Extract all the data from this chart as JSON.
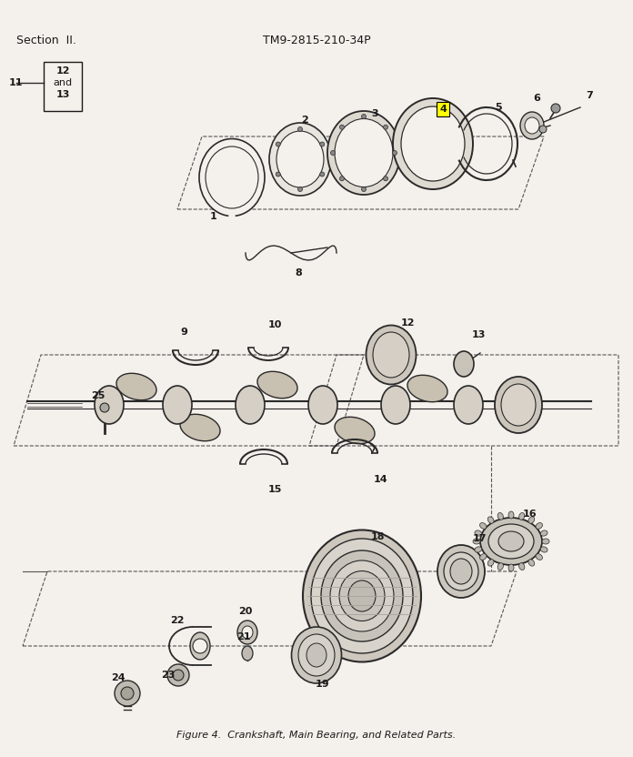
{
  "header_left": "Section  II.",
  "header_center": "TM9-2815-210-34P",
  "caption": "Figure 4.  Crankshaft, Main Bearing, and Related Parts.",
  "bg_color": "#f4f0eb",
  "text_color": "#1a1a1a",
  "draw_color": "#2a2a2a",
  "header_fontsize": 9,
  "caption_fontsize": 8,
  "label_fontsize": 8,
  "figsize": [
    6.96,
    8.32
  ],
  "dpi": 100
}
